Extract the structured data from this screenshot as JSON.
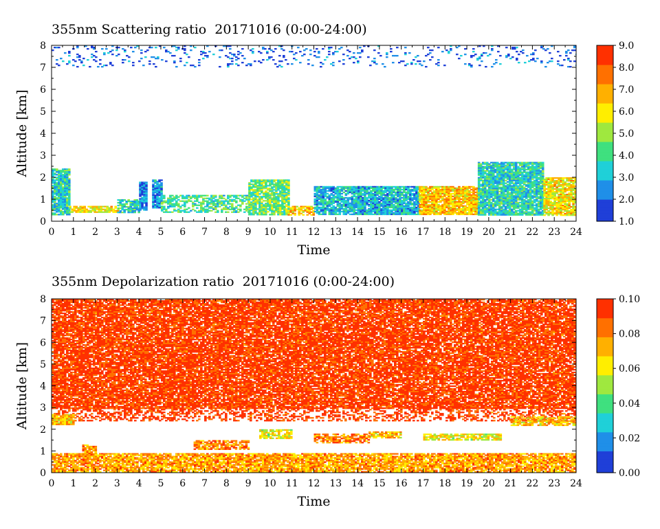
{
  "chart_data": [
    {
      "type": "heatmap",
      "title": "355nm Scattering ratio  20171016 (0:00-24:00)",
      "xlabel": "Time",
      "ylabel": "Altitude [km]",
      "xlim": [
        0,
        24
      ],
      "ylim": [
        0,
        8
      ],
      "x_ticks": [
        "0",
        "1",
        "2",
        "3",
        "4",
        "5",
        "6",
        "7",
        "8",
        "9",
        "10",
        "11",
        "12",
        "13",
        "14",
        "15",
        "16",
        "17",
        "18",
        "19",
        "20",
        "21",
        "22",
        "23",
        "24"
      ],
      "y_ticks": [
        "0",
        "1",
        "2",
        "3",
        "4",
        "5",
        "6",
        "7",
        "8"
      ],
      "colorbar": {
        "range": [
          1.0,
          9.0
        ],
        "tick_labels": [
          "1.0",
          "2.0",
          "3.0",
          "4.0",
          "5.0",
          "6.0",
          "7.0",
          "8.0",
          "9.0"
        ],
        "colors": [
          "#1f3fd8",
          "#1f8fe8",
          "#1fd0d8",
          "#3fe07f",
          "#9fe83f",
          "#ffee00",
          "#ffb000",
          "#ff7000",
          "#ff3000"
        ]
      },
      "layers": [
        {
          "x_range": [
            0,
            24
          ],
          "alt_range": [
            7.0,
            8.0
          ],
          "value": 1.8,
          "coverage": 0.12
        },
        {
          "x_range": [
            0.0,
            0.8
          ],
          "alt_range": [
            0.3,
            2.4
          ],
          "value": 3.5,
          "coverage": 0.9
        },
        {
          "x_range": [
            0.8,
            3.0
          ],
          "alt_range": [
            0.4,
            0.7
          ],
          "value": 6.0,
          "coverage": 0.8
        },
        {
          "x_range": [
            3.0,
            4.0
          ],
          "alt_range": [
            0.4,
            1.0
          ],
          "value": 3.5,
          "coverage": 0.8
        },
        {
          "x_range": [
            4.0,
            4.3
          ],
          "alt_range": [
            0.5,
            1.8
          ],
          "value": 2.0,
          "coverage": 0.9
        },
        {
          "x_range": [
            4.6,
            5.0
          ],
          "alt_range": [
            0.6,
            1.9
          ],
          "value": 2.5,
          "coverage": 0.9
        },
        {
          "x_range": [
            5.0,
            9.0
          ],
          "alt_range": [
            0.4,
            1.2
          ],
          "value": 4.0,
          "coverage": 0.6
        },
        {
          "x_range": [
            9.0,
            10.8
          ],
          "alt_range": [
            0.3,
            1.9
          ],
          "value": 4.5,
          "coverage": 0.85
        },
        {
          "x_range": [
            10.8,
            12.0
          ],
          "alt_range": [
            0.3,
            0.7
          ],
          "value": 6.5,
          "coverage": 0.7
        },
        {
          "x_range": [
            12.0,
            14.0
          ],
          "alt_range": [
            0.3,
            1.6
          ],
          "value": 3.0,
          "coverage": 0.85
        },
        {
          "x_range": [
            14.0,
            16.8
          ],
          "alt_range": [
            0.3,
            1.6
          ],
          "value": 3.0,
          "coverage": 0.9
        },
        {
          "x_range": [
            16.8,
            19.5
          ],
          "alt_range": [
            0.3,
            1.6
          ],
          "value": 6.5,
          "coverage": 0.9
        },
        {
          "x_range": [
            19.5,
            22.5
          ],
          "alt_range": [
            0.3,
            2.7
          ],
          "value": 3.5,
          "coverage": 0.9
        },
        {
          "x_range": [
            22.5,
            24.0
          ],
          "alt_range": [
            0.3,
            2.0
          ],
          "value": 6.0,
          "coverage": 0.85
        }
      ]
    },
    {
      "type": "heatmap",
      "title": "355nm Depolarization ratio  20171016 (0:00-24:00)",
      "xlabel": "Time",
      "ylabel": "Altitude [km]",
      "xlim": [
        0,
        24
      ],
      "ylim": [
        0,
        8
      ],
      "x_ticks": [
        "0",
        "1",
        "2",
        "3",
        "4",
        "5",
        "6",
        "7",
        "8",
        "9",
        "10",
        "11",
        "12",
        "13",
        "14",
        "15",
        "16",
        "17",
        "18",
        "19",
        "20",
        "21",
        "22",
        "23",
        "24"
      ],
      "y_ticks": [
        "0",
        "1",
        "2",
        "3",
        "4",
        "5",
        "6",
        "7",
        "8"
      ],
      "colorbar": {
        "range": [
          0.0,
          0.1
        ],
        "tick_labels": [
          "0.00",
          "0.02",
          "0.04",
          "0.06",
          "0.08",
          "0.10"
        ],
        "colors": [
          "#1f3fd8",
          "#1f8fe8",
          "#1fd0d8",
          "#3fe07f",
          "#9fe83f",
          "#ffee00",
          "#ffb000",
          "#ff7000",
          "#ff3000"
        ]
      },
      "layers": [
        {
          "x_range": [
            0,
            24
          ],
          "alt_range": [
            3.0,
            8.0
          ],
          "value": 0.095,
          "coverage": 0.85
        },
        {
          "x_range": [
            0,
            24
          ],
          "alt_range": [
            2.4,
            3.0
          ],
          "value": 0.095,
          "coverage": 0.45
        },
        {
          "x_range": [
            0.0,
            1.0
          ],
          "alt_range": [
            2.2,
            2.7
          ],
          "value": 0.07,
          "coverage": 0.9
        },
        {
          "x_range": [
            0,
            24
          ],
          "alt_range": [
            0.0,
            0.9
          ],
          "value": 0.075,
          "coverage": 0.85
        },
        {
          "x_range": [
            1.4,
            2.0
          ],
          "alt_range": [
            0.8,
            1.3
          ],
          "value": 0.08,
          "coverage": 0.8
        },
        {
          "x_range": [
            6.5,
            9.0
          ],
          "alt_range": [
            1.1,
            1.5
          ],
          "value": 0.08,
          "coverage": 0.7
        },
        {
          "x_range": [
            9.5,
            11.0
          ],
          "alt_range": [
            1.6,
            2.0
          ],
          "value": 0.06,
          "coverage": 0.8
        },
        {
          "x_range": [
            12.0,
            14.5
          ],
          "alt_range": [
            1.4,
            1.8
          ],
          "value": 0.08,
          "coverage": 0.7
        },
        {
          "x_range": [
            14.5,
            16.0
          ],
          "alt_range": [
            1.6,
            1.9
          ],
          "value": 0.07,
          "coverage": 0.7
        },
        {
          "x_range": [
            17.0,
            20.5
          ],
          "alt_range": [
            1.5,
            1.8
          ],
          "value": 0.06,
          "coverage": 0.8
        },
        {
          "x_range": [
            21.0,
            24.0
          ],
          "alt_range": [
            2.2,
            2.6
          ],
          "value": 0.07,
          "coverage": 0.7
        }
      ]
    }
  ]
}
